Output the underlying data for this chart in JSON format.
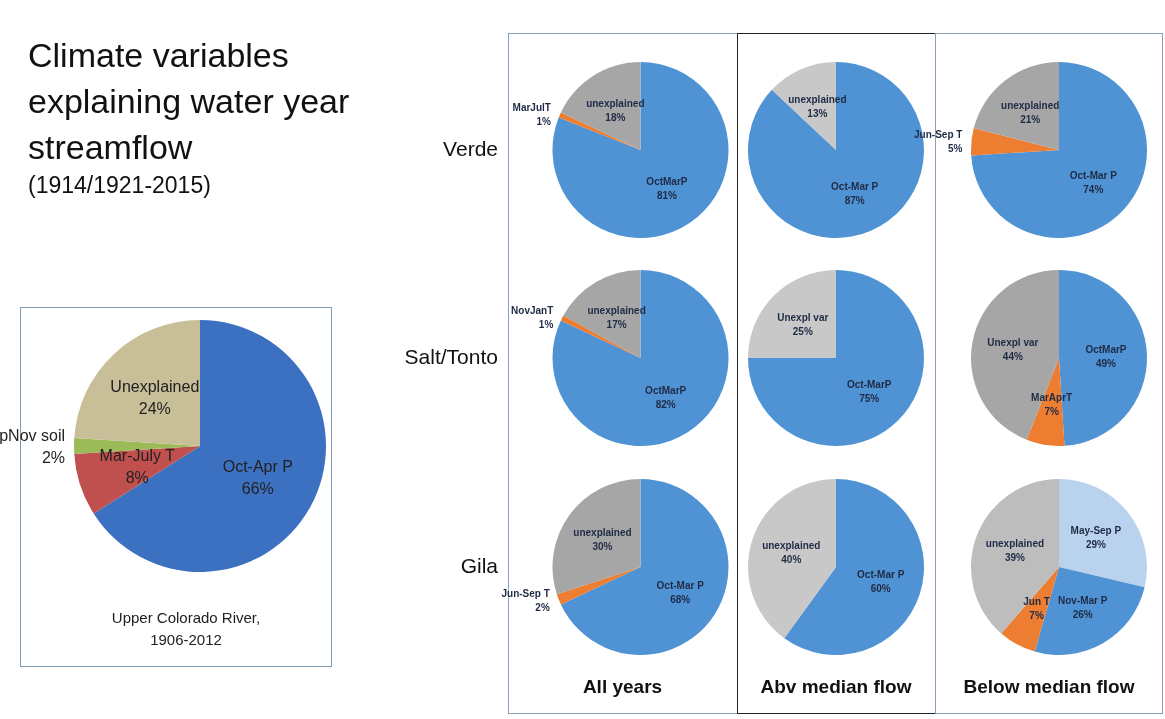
{
  "chart_data": [
    {
      "type": "other",
      "title": "Climate variables explaining water year streamflow",
      "subtitle": "(1914/1921-2015)"
    },
    {
      "type": "pie",
      "categories": [
        "Oct-Apr P",
        "Mar-July T",
        "pNov soil",
        "Unexplained"
      ],
      "values": [
        66,
        8,
        2,
        24
      ],
      "value_labels": [
        "66%",
        "8%",
        "2%",
        "24%"
      ],
      "colors": [
        "#3c70c0",
        "#c0504d",
        "#9bbb59",
        "#c8bf98"
      ],
      "annotations": [
        "Upper Colorado River, 1906-2012"
      ]
    },
    {
      "type": "pie",
      "ylabel": "Verde",
      "categories": [
        "OctMarP",
        "MarJulT",
        "unexplained"
      ],
      "values": [
        81,
        1,
        18
      ],
      "value_labels": [
        "81%",
        "1%",
        "18%"
      ],
      "colors": [
        "#4f93d4",
        "#ed7d31",
        "#a6a6a6"
      ]
    },
    {
      "type": "pie",
      "categories": [
        "Oct-Mar P",
        "unexplained"
      ],
      "values": [
        87,
        13
      ],
      "value_labels": [
        "87%",
        "13%"
      ],
      "colors": [
        "#4f93d4",
        "#c8c8c8"
      ]
    },
    {
      "type": "pie",
      "categories": [
        "Oct-Mar P",
        "Jun-Sep T",
        "unexplained"
      ],
      "values": [
        74,
        5,
        21
      ],
      "value_labels": [
        "74%",
        "5%",
        "21%"
      ],
      "colors": [
        "#4f93d4",
        "#ed7d31",
        "#a6a6a6"
      ]
    },
    {
      "type": "pie",
      "ylabel": "Salt/Tonto",
      "categories": [
        "OctMarP",
        "NovJanT",
        "unexplained"
      ],
      "values": [
        82,
        1,
        17
      ],
      "value_labels": [
        "82%",
        "1%",
        "17%"
      ],
      "colors": [
        "#4f93d4",
        "#ed7d31",
        "#a6a6a6"
      ]
    },
    {
      "type": "pie",
      "categories": [
        "Oct-MarP",
        "Unexpl var"
      ],
      "values": [
        75,
        25
      ],
      "value_labels": [
        "75%",
        "25%"
      ],
      "colors": [
        "#4f93d4",
        "#c8c8c8"
      ]
    },
    {
      "type": "pie",
      "categories": [
        "OctMarP",
        "MarAprT",
        "Unexpl var"
      ],
      "values": [
        49,
        7,
        44
      ],
      "value_labels": [
        "49%",
        "7%",
        "44%"
      ],
      "colors": [
        "#4f93d4",
        "#ed7d31",
        "#a6a6a6"
      ]
    },
    {
      "type": "pie",
      "ylabel": "Gila",
      "xlabel": "All years",
      "categories": [
        "Oct-Mar P",
        "Jun-Sep T",
        "unexplained"
      ],
      "values": [
        68,
        2,
        30
      ],
      "value_labels": [
        "68%",
        "2%",
        "30%"
      ],
      "colors": [
        "#4f93d4",
        "#ed7d31",
        "#a6a6a6"
      ]
    },
    {
      "type": "pie",
      "xlabel": "Abv median flow",
      "categories": [
        "Oct-Mar P",
        "unexplained"
      ],
      "values": [
        60,
        40
      ],
      "value_labels": [
        "60%",
        "40%"
      ],
      "colors": [
        "#4f93d4",
        "#c8c8c8"
      ]
    },
    {
      "type": "pie",
      "xlabel": "Below median flow",
      "categories": [
        "May-Sep P",
        "Nov-Mar P",
        "Jun T",
        "unexplained"
      ],
      "values": [
        29,
        26,
        7,
        39
      ],
      "value_labels": [
        "29%",
        "26%",
        "7%",
        "39%"
      ],
      "colors": [
        "#b9d3ef",
        "#4f93d4",
        "#ed7d31",
        "#bdbdbd"
      ]
    }
  ]
}
